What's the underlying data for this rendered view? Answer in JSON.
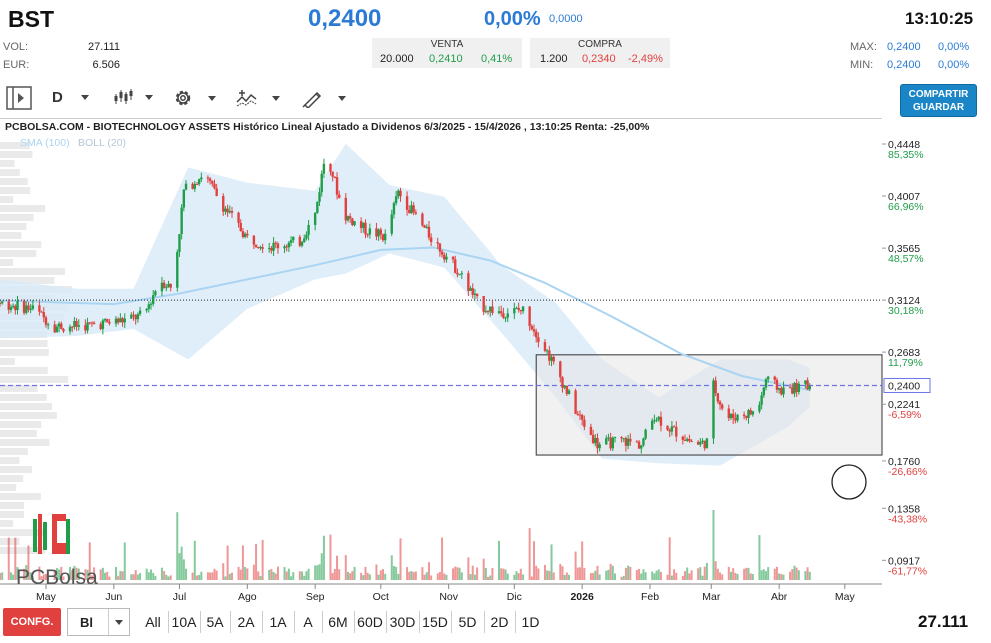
{
  "header": {
    "ticker": "BST",
    "price": "0,2400",
    "change_pct": "0,00%",
    "change_abs": "0,0000",
    "time": "13:10:25"
  },
  "stats": {
    "vol_label": "VOL:",
    "vol_value": "27.111",
    "eur_label": "EUR:",
    "eur_value": "6.506",
    "max_label": "MAX:",
    "max_price": "0,2400",
    "max_pct": "0,00%",
    "min_label": "MIN:",
    "min_price": "0,2400",
    "min_pct": "0,00%"
  },
  "book": {
    "sell_header": "VENTA",
    "buy_header": "COMPRA",
    "sell_qty": "20.000",
    "sell_price": "0,2410",
    "sell_pct": "0,41%",
    "buy_qty": "1.200",
    "buy_price": "0,2340",
    "buy_pct": "-2,49%"
  },
  "toolbar": {
    "period": "D",
    "share_line1": "COMPARTIR",
    "share_line2": "GUARDAR"
  },
  "bottom": {
    "config_label": "CONFG.",
    "scale_value": "Bl",
    "ranges": [
      "All",
      "10A",
      "5A",
      "2A",
      "1A",
      "A",
      "6M",
      "60D",
      "30D",
      "15D",
      "5D",
      "2D",
      "1D"
    ],
    "total_volume": "27.111"
  },
  "logo_text": "PCBolsa",
  "colors": {
    "up": "#1f9e4a",
    "down": "#e0413f",
    "accent": "#2b7bd6",
    "bollinger_fill": "#d8eaf8",
    "sma_line": "#a9d4f2"
  },
  "chart_data": {
    "type": "candlestick",
    "title": "PCBOLSA.COM - BIOTECHNOLOGY ASSETS Histórico Lineal Ajustado a Dividenos 6/3/2025 - 15/4/2026 , 13:10:25 Renta: -25,00%",
    "legend": [
      {
        "name": "SMA (100)",
        "color": "#a9d4f2"
      },
      {
        "name": "BOLL (20)",
        "color": "#b5c7d8"
      }
    ],
    "y_ticks": [
      {
        "price": 0.4448,
        "label": "0,4448",
        "pct": "85,35%"
      },
      {
        "price": 0.4007,
        "label": "0,4007",
        "pct": "66,96%"
      },
      {
        "price": 0.3565,
        "label": "0,3565",
        "pct": "48,57%"
      },
      {
        "price": 0.3124,
        "label": "0,3124",
        "pct": "30,18%"
      },
      {
        "price": 0.2683,
        "label": "0,2683",
        "pct": "11,79%"
      },
      {
        "price": 0.2241,
        "label": "0,2241",
        "pct": "-6,59%"
      },
      {
        "price": 0.176,
        "label": "0,1760",
        "pct": "-26,66%"
      },
      {
        "price": 0.1358,
        "label": "0,1358",
        "pct": "-43,38%"
      },
      {
        "price": 0.0917,
        "label": "0,0917",
        "pct": "-61,77%"
      }
    ],
    "current_price": {
      "price": 0.24,
      "label": "0,2400"
    },
    "reference_price": 0.3124,
    "ylim": [
      0.075,
      0.455
    ],
    "x_months": [
      "May",
      "Jun",
      "Jul",
      "Ago",
      "Sep",
      "Oct",
      "Nov",
      "Dic",
      "2026",
      "Feb",
      "Mar",
      "Abr",
      "May"
    ],
    "x_month_dates": [
      "2025-05-01",
      "2025-06-01",
      "2025-07-01",
      "2025-08-01",
      "2025-09-01",
      "2025-10-01",
      "2025-11-01",
      "2025-12-01",
      "2026-01-01",
      "2026-02-01",
      "2026-03-01",
      "2026-04-01",
      "2026-05-01"
    ],
    "xlim": [
      "2025-04-10",
      "2026-05-18"
    ],
    "consolidation_box": {
      "from": "2025-12-11",
      "to": "2026-05-18",
      "high": 0.266,
      "low": 0.181
    },
    "price_path": [
      [
        "2025-04-10",
        0.31
      ],
      [
        "2025-04-25",
        0.305
      ],
      [
        "2025-05-05",
        0.29
      ],
      [
        "2025-05-20",
        0.291
      ],
      [
        "2025-06-05",
        0.295
      ],
      [
        "2025-06-15",
        0.3
      ],
      [
        "2025-06-22",
        0.33
      ],
      [
        "2025-06-28",
        0.322
      ],
      [
        "2025-07-03",
        0.405
      ],
      [
        "2025-07-12",
        0.42
      ],
      [
        "2025-07-20",
        0.395
      ],
      [
        "2025-08-01",
        0.365
      ],
      [
        "2025-08-12",
        0.358
      ],
      [
        "2025-08-25",
        0.362
      ],
      [
        "2025-09-01",
        0.385
      ],
      [
        "2025-09-06",
        0.44
      ],
      [
        "2025-09-14",
        0.385
      ],
      [
        "2025-09-24",
        0.372
      ],
      [
        "2025-10-03",
        0.366
      ],
      [
        "2025-10-09",
        0.404
      ],
      [
        "2025-10-22",
        0.37
      ],
      [
        "2025-11-05",
        0.338
      ],
      [
        "2025-11-15",
        0.308
      ],
      [
        "2025-11-25",
        0.302
      ],
      [
        "2025-12-05",
        0.304
      ],
      [
        "2025-12-15",
        0.272
      ],
      [
        "2025-12-22",
        0.247
      ],
      [
        "2025-12-30",
        0.215
      ],
      [
        "2026-01-08",
        0.19
      ],
      [
        "2026-01-20",
        0.193
      ],
      [
        "2026-01-28",
        0.19
      ],
      [
        "2026-02-03",
        0.215
      ],
      [
        "2026-02-10",
        0.204
      ],
      [
        "2026-02-22",
        0.19
      ],
      [
        "2026-02-27",
        0.192
      ],
      [
        "2026-03-02",
        0.24
      ],
      [
        "2026-03-08",
        0.212
      ],
      [
        "2026-03-15",
        0.215
      ],
      [
        "2026-03-22",
        0.218
      ],
      [
        "2026-03-26",
        0.245
      ],
      [
        "2026-04-02",
        0.236
      ],
      [
        "2026-04-15",
        0.24
      ]
    ],
    "sma_100": [
      [
        "2025-04-10",
        0.312
      ],
      [
        "2025-06-01",
        0.309
      ],
      [
        "2025-07-01",
        0.318
      ],
      [
        "2025-08-01",
        0.33
      ],
      [
        "2025-09-01",
        0.342
      ],
      [
        "2025-10-01",
        0.355
      ],
      [
        "2025-10-25",
        0.357
      ],
      [
        "2025-11-20",
        0.346
      ],
      [
        "2025-12-15",
        0.327
      ],
      [
        "2026-01-15",
        0.298
      ],
      [
        "2026-02-15",
        0.267
      ],
      [
        "2026-03-15",
        0.248
      ],
      [
        "2026-04-15",
        0.236
      ]
    ],
    "boll_upper": [
      [
        "2025-04-10",
        0.33
      ],
      [
        "2025-05-15",
        0.322
      ],
      [
        "2025-06-10",
        0.322
      ],
      [
        "2025-07-05",
        0.425
      ],
      [
        "2025-08-01",
        0.412
      ],
      [
        "2025-09-01",
        0.405
      ],
      [
        "2025-09-15",
        0.445
      ],
      [
        "2025-10-05",
        0.41
      ],
      [
        "2025-10-30",
        0.4
      ],
      [
        "2025-11-25",
        0.342
      ],
      [
        "2025-12-20",
        0.31
      ],
      [
        "2026-01-10",
        0.262
      ],
      [
        "2026-02-05",
        0.23
      ],
      [
        "2026-03-05",
        0.262
      ],
      [
        "2026-04-05",
        0.262
      ],
      [
        "2026-04-15",
        0.255
      ]
    ],
    "boll_lower": [
      [
        "2025-04-10",
        0.28
      ],
      [
        "2025-05-15",
        0.282
      ],
      [
        "2025-06-10",
        0.288
      ],
      [
        "2025-07-05",
        0.262
      ],
      [
        "2025-08-01",
        0.305
      ],
      [
        "2025-09-01",
        0.33
      ],
      [
        "2025-09-15",
        0.335
      ],
      [
        "2025-10-05",
        0.352
      ],
      [
        "2025-10-30",
        0.34
      ],
      [
        "2025-11-25",
        0.285
      ],
      [
        "2025-12-20",
        0.23
      ],
      [
        "2026-01-10",
        0.178
      ],
      [
        "2026-02-05",
        0.174
      ],
      [
        "2026-03-05",
        0.172
      ],
      [
        "2026-04-05",
        0.205
      ],
      [
        "2026-04-15",
        0.222
      ]
    ]
  }
}
